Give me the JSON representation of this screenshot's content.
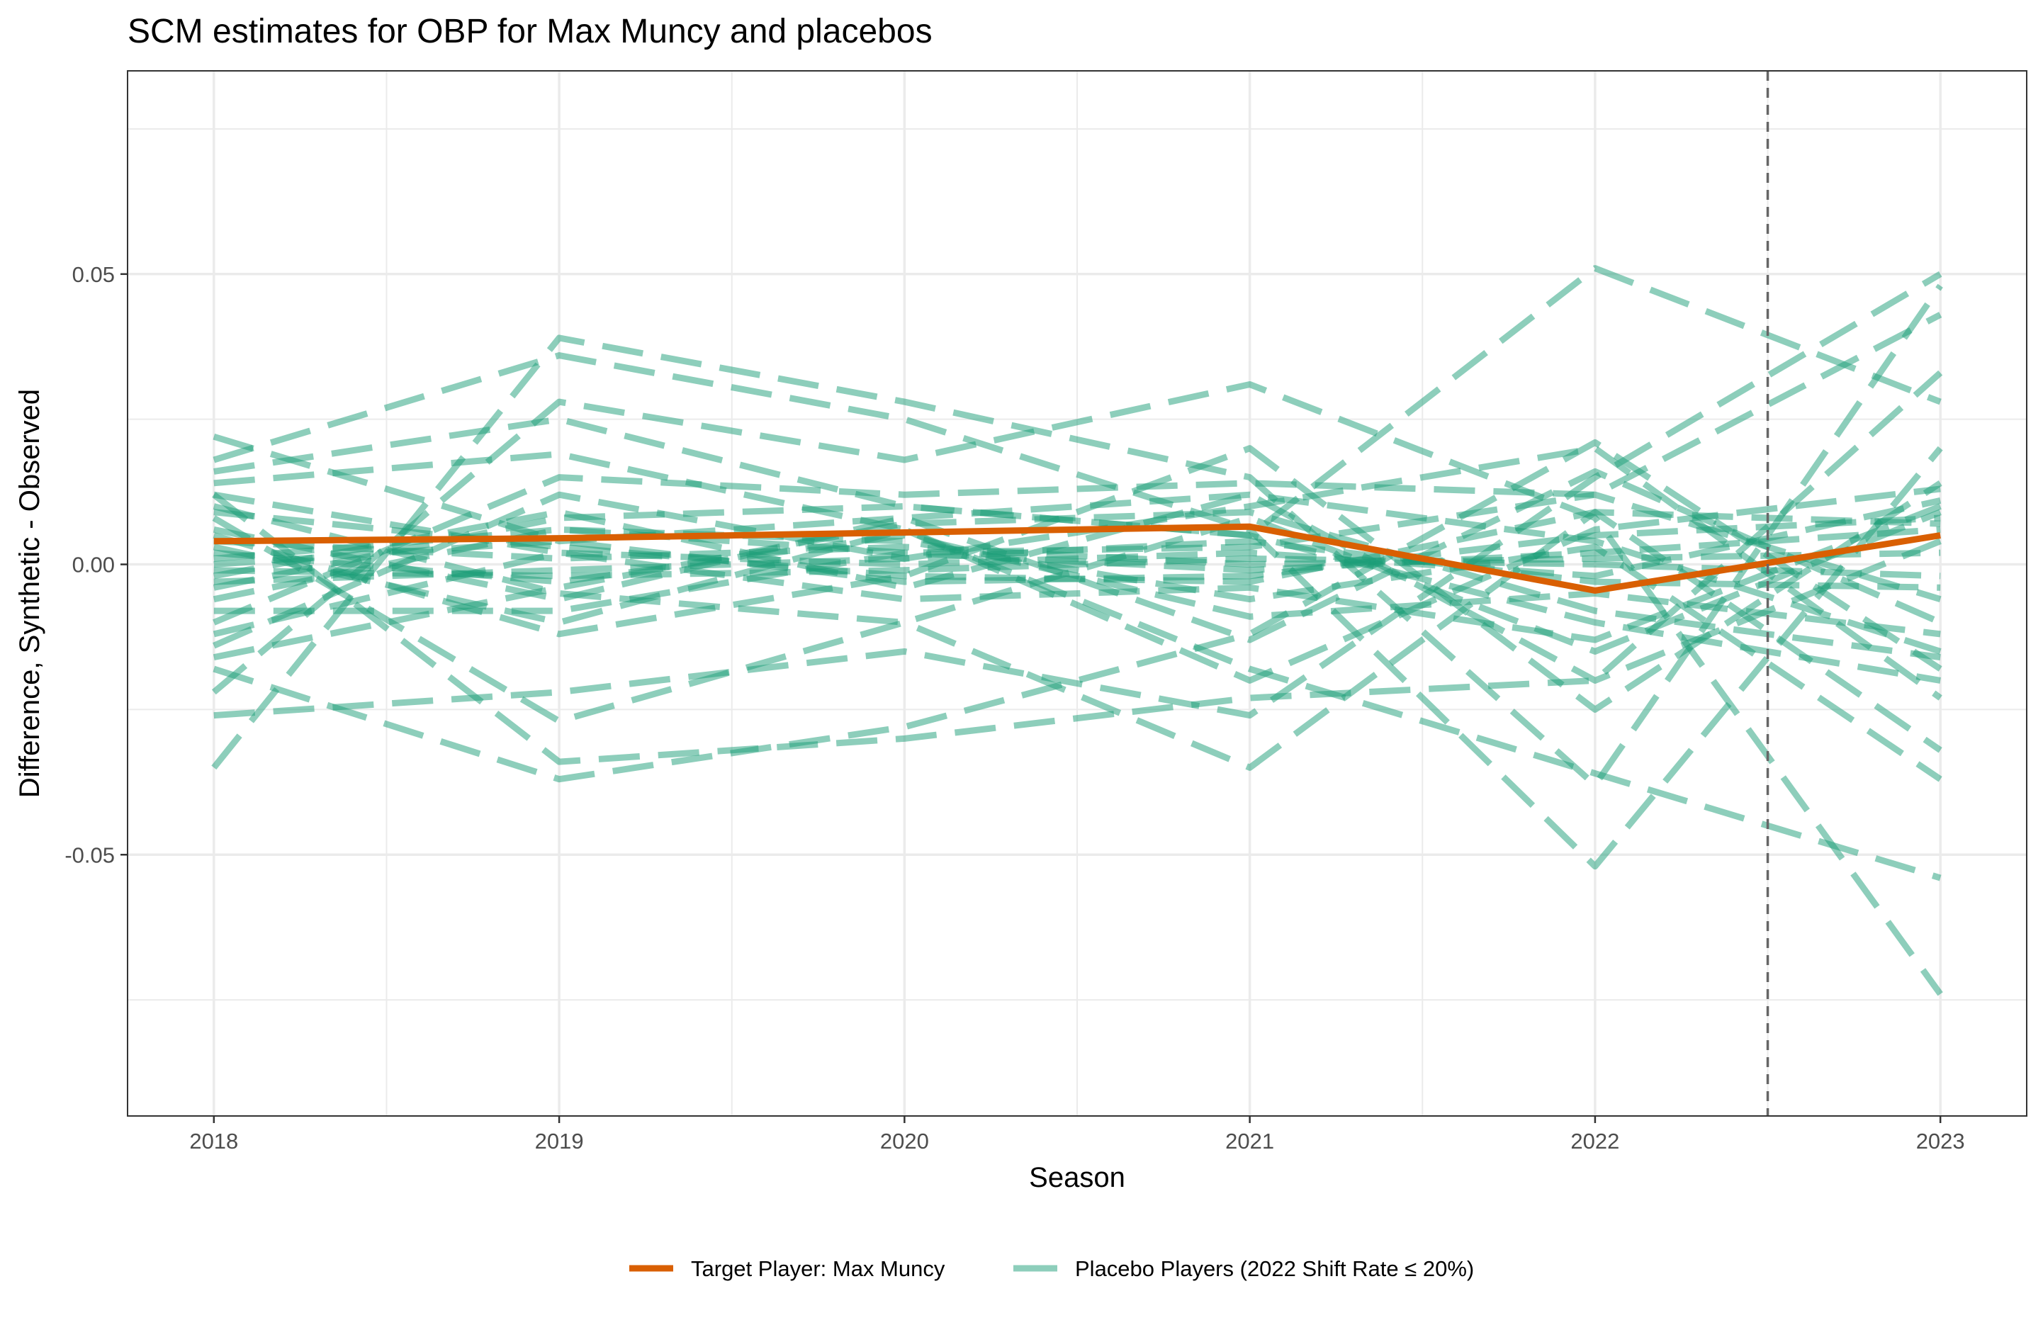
{
  "chart_data": {
    "type": "line",
    "title": "SCM estimates for OBP for Max Muncy and placebos",
    "xlabel": "Season",
    "ylabel": "Difference, Synthetic - Observed",
    "x": [
      2018,
      2019,
      2020,
      2021,
      2022,
      2023
    ],
    "x_tick_labels": [
      "2018",
      "2019",
      "2020",
      "2021",
      "2022",
      "2023"
    ],
    "xlim": [
      2017.75,
      2023.25
    ],
    "ylim": [
      -0.095,
      0.085
    ],
    "y_ticks": [
      -0.05,
      0,
      0.05
    ],
    "y_tick_labels": [
      "-0.05",
      "0.00",
      "0.05"
    ],
    "y_minor_ticks": [
      -0.075,
      -0.025,
      0.025,
      0.075
    ],
    "grid": true,
    "treatment_line_x": 2022.5,
    "legend_position": "bottom",
    "colors": {
      "target": "#D95F02",
      "placebo": "#1B9E77",
      "reference_line": "#666666"
    },
    "target_series": {
      "name": "Target Player: Max Muncy",
      "values": [
        0.004,
        0.0045,
        0.0055,
        0.0065,
        -0.0045,
        0.005
      ]
    },
    "placebo_legend": "Placebo Players (2022 Shift Rate ≤ 20%)",
    "placebo_series": [
      [
        0.022,
        0.004,
        0.008,
        0.012,
        0.004,
        -0.015
      ],
      [
        -0.035,
        0.039,
        0.028,
        0.015,
        -0.038,
        0.048
      ],
      [
        0.016,
        0.025,
        0.01,
        0.005,
        0.051,
        0.028
      ],
      [
        -0.026,
        -0.022,
        -0.015,
        -0.026,
        0.015,
        0.05
      ],
      [
        0.012,
        -0.034,
        -0.03,
        -0.023,
        -0.02,
        0.033
      ],
      [
        -0.018,
        -0.037,
        -0.028,
        -0.012,
        0.021,
        -0.018
      ],
      [
        -0.022,
        0.028,
        0.018,
        0.031,
        0.008,
        -0.074
      ],
      [
        0.018,
        0.036,
        0.025,
        0.006,
        -0.052,
        0.02
      ],
      [
        0.014,
        0.019,
        0.006,
        -0.018,
        -0.036,
        -0.054
      ],
      [
        -0.01,
        0.015,
        0.012,
        0.014,
        0.012,
        0.043
      ],
      [
        0.008,
        -0.027,
        -0.01,
        -0.035,
        0.009,
        -0.032
      ],
      [
        0.005,
        -0.012,
        -0.002,
        0.02,
        -0.025,
        0.014
      ],
      [
        -0.014,
        0.012,
        0.001,
        0.01,
        0.02,
        -0.023
      ],
      [
        0.003,
        -0.01,
        0.006,
        -0.02,
        0.006,
        0.013
      ],
      [
        -0.004,
        0.008,
        0.01,
        0.005,
        -0.01,
        -0.02
      ],
      [
        0.01,
        -0.005,
        -0.01,
        0.008,
        -0.015,
        0.009
      ],
      [
        -0.006,
        0.006,
        0.004,
        -0.006,
        0.003,
        -0.037
      ],
      [
        0.012,
        0.002,
        -0.006,
        -0.004,
        -0.013,
        0.01
      ],
      [
        -0.008,
        -0.008,
        0.002,
        0.003,
        0.012,
        -0.006
      ],
      [
        0.0,
        0.004,
        -0.003,
        -0.002,
        0.005,
        0.008
      ],
      [
        0.002,
        -0.003,
        0.005,
        -0.009,
        -0.005,
        -0.012
      ],
      [
        -0.002,
        0.009,
        -0.004,
        0.012,
        -0.02,
        0.004
      ],
      [
        0.006,
        -0.006,
        0.008,
        -0.013,
        0.016,
        -0.01
      ],
      [
        -0.012,
        0.002,
        0.0,
        0.002,
        -0.002,
        0.011
      ],
      [
        0.004,
        0.001,
        0.003,
        0.0,
        0.001,
        0.002
      ],
      [
        -0.001,
        -0.002,
        -0.001,
        0.001,
        0.0,
        -0.002
      ],
      [
        0.001,
        0.006,
        0.002,
        -0.001,
        0.002,
        0.006
      ],
      [
        -0.003,
        -0.001,
        0.001,
        0.004,
        -0.003,
        -0.004
      ],
      [
        0.009,
        0.003,
        -0.002,
        -0.003,
        0.009,
        0.007
      ],
      [
        -0.016,
        -0.004,
        0.007,
        0.009,
        -0.008,
        -0.016
      ]
    ]
  }
}
